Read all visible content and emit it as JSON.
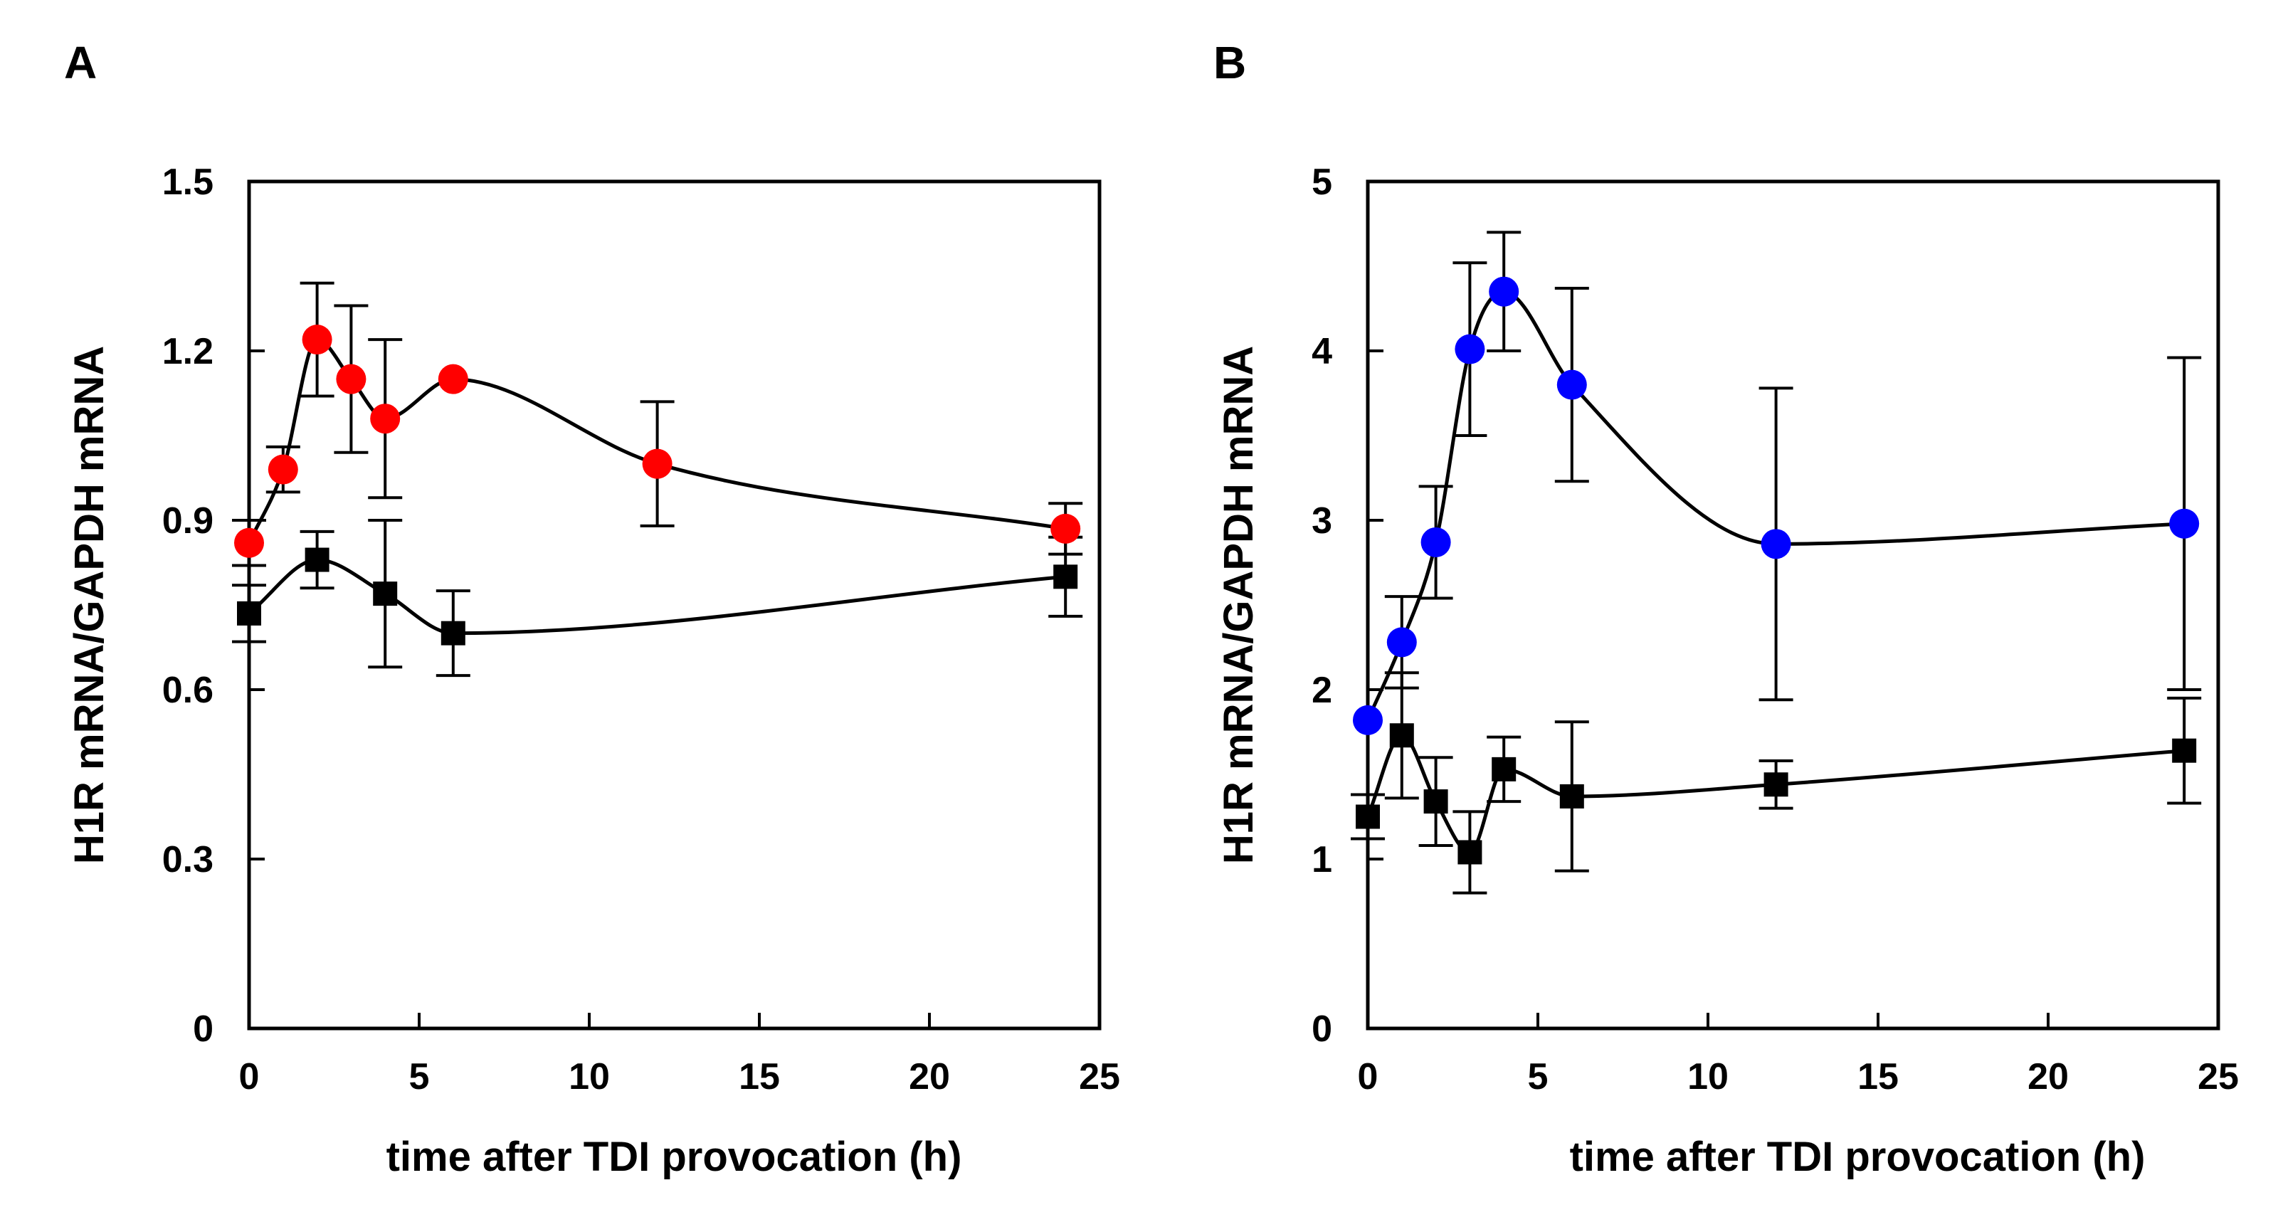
{
  "chart_data": [
    {
      "type": "scatter",
      "panel": "A",
      "xlabel": "time after TDI provocation (h)",
      "ylabel": "H1R mRNA/GAPDH mRNA",
      "xlim": [
        0,
        25
      ],
      "ylim": [
        0,
        1.5
      ],
      "x_ticks": [
        "0",
        "5",
        "10",
        "15",
        "20",
        "25"
      ],
      "y_ticks": [
        "0",
        "0.3",
        "0.6",
        "0.9",
        "1.2",
        "1.5"
      ],
      "grid": false,
      "series": [
        {
          "name": "red circles",
          "marker": "circle",
          "color": "#ff0000",
          "x": [
            0,
            1,
            2,
            3,
            4,
            6,
            12,
            24
          ],
          "y": [
            0.86,
            0.99,
            1.22,
            1.15,
            1.08,
            1.15,
            1.0,
            0.885
          ],
          "err": [
            0.04,
            0.04,
            0.1,
            0.13,
            0.14,
            0.0,
            0.11,
            0.045
          ]
        },
        {
          "name": "black squares",
          "marker": "square",
          "color": "#000000",
          "x": [
            0,
            2,
            4,
            6,
            24
          ],
          "y": [
            0.735,
            0.83,
            0.77,
            0.7,
            0.8
          ],
          "err": [
            0.05,
            0.05,
            0.13,
            0.075,
            0.07
          ]
        }
      ]
    },
    {
      "type": "scatter",
      "panel": "B",
      "xlabel": "time after TDI provocation (h)",
      "ylabel": "H1R mRNA/GAPDH mRNA",
      "xlim": [
        0,
        25
      ],
      "ylim": [
        0,
        5
      ],
      "x_ticks": [
        "0",
        "5",
        "10",
        "15",
        "20",
        "25"
      ],
      "y_ticks": [
        "0",
        "1",
        "2",
        "3",
        "4",
        "5"
      ],
      "grid": false,
      "series": [
        {
          "name": "blue circles",
          "marker": "circle",
          "color": "#0000ff",
          "x": [
            0,
            1,
            2,
            3,
            4,
            6,
            12,
            24
          ],
          "y": [
            1.82,
            2.28,
            2.87,
            4.01,
            4.35,
            3.8,
            2.86,
            2.98
          ],
          "err": [
            0.0,
            0.27,
            0.33,
            0.51,
            0.35,
            0.57,
            0.92,
            0.98
          ]
        },
        {
          "name": "black squares",
          "marker": "square",
          "color": "#000000",
          "x": [
            0,
            1,
            2,
            3,
            4,
            6,
            12,
            24
          ],
          "y": [
            1.25,
            1.73,
            1.34,
            1.04,
            1.53,
            1.37,
            1.44,
            1.64
          ],
          "err": [
            0.13,
            0.37,
            0.26,
            0.24,
            0.19,
            0.44,
            0.14,
            0.31
          ]
        }
      ]
    }
  ]
}
